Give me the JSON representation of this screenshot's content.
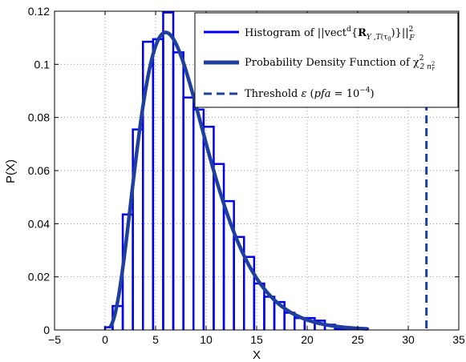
{
  "chart_data": {
    "type": "histogram+line",
    "xlabel": "X",
    "ylabel": "P(X)",
    "xlim": [
      -5,
      35
    ],
    "ylim": [
      0,
      0.12
    ],
    "xticks": [
      -5,
      0,
      5,
      10,
      15,
      20,
      25,
      30,
      35
    ],
    "yticks": [
      0,
      0.02,
      0.04,
      0.06,
      0.08,
      0.1,
      0.12
    ],
    "xtick_labels": [
      "−5",
      "0",
      "5",
      "10",
      "15",
      "20",
      "25",
      "30",
      "35"
    ],
    "ytick_labels": [
      "0",
      "0.02",
      "0.04",
      "0.06",
      "0.08",
      "0.1",
      "0.12"
    ],
    "grid": true,
    "legend_position": "top-right",
    "histogram": {
      "name": "Histogram of ||vect^d{R̂_{Y,T}(τ0)}||²_F",
      "color": "#0000ee",
      "edges": [
        0,
        0.75,
        1.75,
        2.75,
        3.75,
        4.75,
        5.75,
        6.75,
        7.75,
        8.75,
        9.75,
        10.75,
        11.75,
        12.75,
        13.75,
        14.75,
        15.75,
        16.75,
        17.75,
        18.75,
        19.75,
        20.75,
        21.75,
        22.75,
        26
      ],
      "values": [
        0.001,
        0.009,
        0.0435,
        0.0755,
        0.1085,
        0.1095,
        0.1195,
        0.1045,
        0.0875,
        0.083,
        0.0765,
        0.0625,
        0.0485,
        0.035,
        0.0275,
        0.0175,
        0.0125,
        0.0105,
        0.0065,
        0.0045,
        0.0045,
        0.0035,
        0.002,
        0.0005
      ]
    },
    "pdf": {
      "name": "Probability Density Function of χ²_{2n²_r}",
      "color": "#1f3f9f",
      "degrees_of_freedom": 8,
      "x_range": [
        0.5,
        26
      ]
    },
    "threshold": {
      "name": "Threshold ε (pfa = 10^-4)",
      "color": "#1f3f9f",
      "x": 31.8
    },
    "legend": {
      "histogram": {
        "prefix": "Histogram of ||vect",
        "sup": "d",
        "mid": "{",
        "R": "R",
        "sub": "Y ,T",
        "tau": "(τ",
        "tau_sub": "0",
        "close": ")}||",
        "norm_sup": "2",
        "norm_sub": "F"
      },
      "pdf": {
        "prefix": "Probability Density Function of χ",
        "sup": "2",
        "sub": "2 n",
        "sub_sup": "2",
        "sub_sub": "r"
      },
      "threshold": {
        "prefix": "Threshold ",
        "eps": "ε",
        "open": " (",
        "pfa": "pfa",
        "eq": " = 10",
        "sup": "−4",
        "close": ")"
      }
    }
  }
}
